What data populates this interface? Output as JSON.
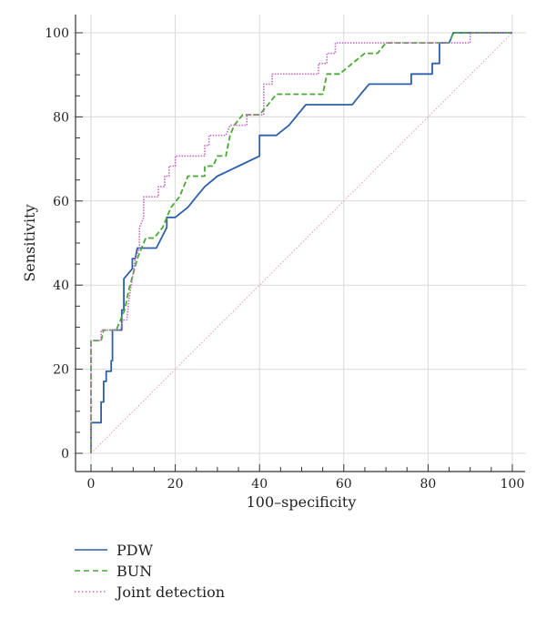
{
  "chart_data": {
    "type": "line",
    "title": "",
    "xlabel": "100–specificity",
    "ylabel": "Sensitivity",
    "xlim": [
      0,
      100
    ],
    "ylim": [
      0,
      100
    ],
    "xticks": [
      0,
      20,
      40,
      60,
      80,
      100
    ],
    "yticks": [
      0,
      20,
      40,
      60,
      80,
      100
    ],
    "grid": true,
    "legend_position": "bottom-left",
    "series": [
      {
        "name": "PDW",
        "color": "#2e5fa8",
        "style": "solid",
        "points": [
          [
            0,
            0
          ],
          [
            0,
            7.3
          ],
          [
            2.4,
            7.3
          ],
          [
            2.4,
            12.2
          ],
          [
            3,
            12.2
          ],
          [
            3,
            17.1
          ],
          [
            3.6,
            17.1
          ],
          [
            3.6,
            19.5
          ],
          [
            4.8,
            19.5
          ],
          [
            4.8,
            22
          ],
          [
            5.1,
            22
          ],
          [
            5.1,
            29.3
          ],
          [
            7.3,
            29.3
          ],
          [
            7.3,
            34.1
          ],
          [
            7.8,
            34.1
          ],
          [
            7.8,
            41.5
          ],
          [
            9.8,
            43.9
          ],
          [
            9.8,
            46.3
          ],
          [
            10.5,
            46.3
          ],
          [
            11,
            48.8
          ],
          [
            15.5,
            48.8
          ],
          [
            18,
            53.7
          ],
          [
            18,
            56.1
          ],
          [
            20,
            56.1
          ],
          [
            23,
            58.5
          ],
          [
            25,
            61
          ],
          [
            27,
            63.4
          ],
          [
            30,
            65.9
          ],
          [
            35,
            68.3
          ],
          [
            40,
            70.7
          ],
          [
            40,
            75.6
          ],
          [
            44,
            75.6
          ],
          [
            47,
            78
          ],
          [
            51,
            82.9
          ],
          [
            62,
            82.9
          ],
          [
            64,
            85.4
          ],
          [
            66,
            87.8
          ],
          [
            76,
            87.8
          ],
          [
            76,
            90.2
          ],
          [
            81,
            90.2
          ],
          [
            81,
            92.7
          ],
          [
            82.7,
            92.7
          ],
          [
            82.7,
            97.6
          ],
          [
            85,
            97.6
          ],
          [
            86,
            100
          ],
          [
            100,
            100
          ]
        ]
      },
      {
        "name": "BUN",
        "color": "#4aa836",
        "style": "dashed",
        "points": [
          [
            0,
            0
          ],
          [
            0,
            26.8
          ],
          [
            2.4,
            26.8
          ],
          [
            3,
            29.3
          ],
          [
            6,
            29.3
          ],
          [
            8,
            34.1
          ],
          [
            9,
            39
          ],
          [
            11,
            46.3
          ],
          [
            12,
            48.8
          ],
          [
            13,
            51.2
          ],
          [
            15,
            51.2
          ],
          [
            17,
            53.7
          ],
          [
            19,
            58.5
          ],
          [
            21,
            61
          ],
          [
            22,
            63.4
          ],
          [
            23,
            65.9
          ],
          [
            27,
            65.9
          ],
          [
            27,
            68.3
          ],
          [
            29,
            68.3
          ],
          [
            30,
            70.7
          ],
          [
            32,
            70.7
          ],
          [
            33,
            75.6
          ],
          [
            34,
            78
          ],
          [
            36,
            80.5
          ],
          [
            40,
            80.5
          ],
          [
            42,
            82.9
          ],
          [
            44,
            85.4
          ],
          [
            55,
            85.4
          ],
          [
            56,
            90.2
          ],
          [
            59,
            90.2
          ],
          [
            62,
            92.7
          ],
          [
            65,
            95.1
          ],
          [
            68,
            95.1
          ],
          [
            70,
            97.6
          ],
          [
            85,
            97.6
          ],
          [
            86,
            100
          ],
          [
            100,
            100
          ]
        ]
      },
      {
        "name": "Joint detection",
        "color": "#c76ac1",
        "style": "dotted",
        "points": [
          [
            0,
            0
          ],
          [
            0,
            26.8
          ],
          [
            2.4,
            26.8
          ],
          [
            2.4,
            29.3
          ],
          [
            7,
            29.3
          ],
          [
            7.5,
            31.7
          ],
          [
            8.5,
            31.7
          ],
          [
            9,
            36.6
          ],
          [
            9.8,
            41.5
          ],
          [
            10.5,
            46.3
          ],
          [
            11.5,
            48.8
          ],
          [
            11.5,
            53.7
          ],
          [
            12.5,
            56.1
          ],
          [
            12.5,
            61
          ],
          [
            16,
            61
          ],
          [
            16,
            63.4
          ],
          [
            17.5,
            63.4
          ],
          [
            17.5,
            65.9
          ],
          [
            18.5,
            65.9
          ],
          [
            18.5,
            68.3
          ],
          [
            20,
            68.3
          ],
          [
            20,
            70.7
          ],
          [
            27,
            70.7
          ],
          [
            27,
            73.2
          ],
          [
            28,
            73.2
          ],
          [
            28,
            75.6
          ],
          [
            32,
            75.6
          ],
          [
            33,
            78
          ],
          [
            37,
            78
          ],
          [
            37,
            80.5
          ],
          [
            41,
            80.5
          ],
          [
            41,
            87.8
          ],
          [
            43,
            87.8
          ],
          [
            43,
            90.2
          ],
          [
            54,
            90.2
          ],
          [
            54,
            92.7
          ],
          [
            56,
            92.7
          ],
          [
            56,
            95.1
          ],
          [
            58,
            95.1
          ],
          [
            58,
            97.6
          ],
          [
            90,
            97.6
          ],
          [
            90,
            100
          ],
          [
            100,
            100
          ]
        ]
      },
      {
        "name": "",
        "color": "#e3a0b0",
        "style": "dotted-thin",
        "points": [
          [
            0,
            0
          ],
          [
            100,
            100
          ]
        ]
      }
    ]
  },
  "legend": {
    "items": [
      {
        "label": "PDW"
      },
      {
        "label": "BUN"
      },
      {
        "label": "Joint detection"
      }
    ]
  }
}
